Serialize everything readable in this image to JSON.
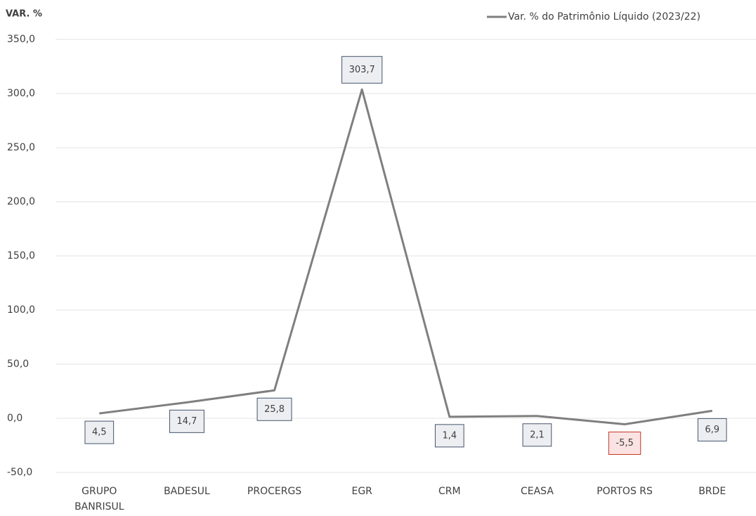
{
  "chart_data": {
    "type": "line",
    "y_axis_label": "VAR. %",
    "categories": [
      "GRUPO BANRISUL",
      "BADESUL",
      "PROCERGS",
      "EGR",
      "CRM",
      "CEASA",
      "PORTOS RS",
      "BRDE"
    ],
    "series": [
      {
        "name": "Var. % do Patrimônio Líquido (2023/22)",
        "color": "#7f7f7f",
        "values": [
          4.5,
          14.7,
          25.8,
          303.7,
          1.4,
          2.1,
          -5.5,
          6.9
        ],
        "value_labels": [
          "4,5",
          "14,7",
          "25,8",
          "303,7",
          "1,4",
          "2,1",
          "-5,5",
          "6,9"
        ]
      }
    ],
    "ylim": [
      -50,
      350
    ],
    "yticks": [
      {
        "value": -50,
        "label": "-50,0"
      },
      {
        "value": 0,
        "label": "0,0"
      },
      {
        "value": 50,
        "label": "50,0"
      },
      {
        "value": 100,
        "label": "100,0"
      },
      {
        "value": 150,
        "label": "150,0"
      },
      {
        "value": 200,
        "label": "200,0"
      },
      {
        "value": 250,
        "label": "250,0"
      },
      {
        "value": 300,
        "label": "300,0"
      },
      {
        "value": 350,
        "label": "350,0"
      }
    ],
    "grid": true,
    "legend": "top-right"
  }
}
